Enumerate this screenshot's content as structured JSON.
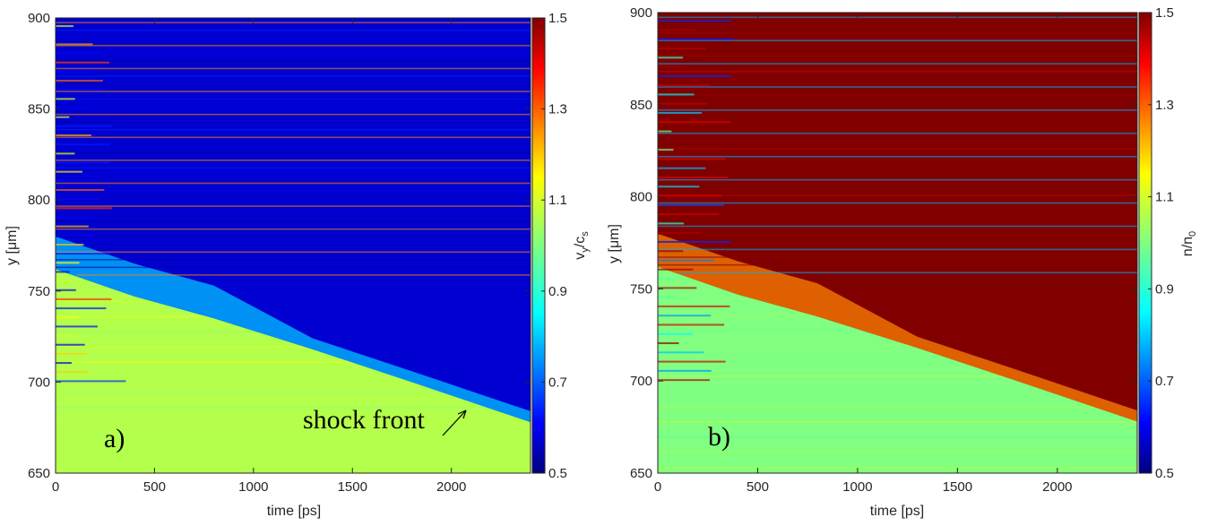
{
  "chart_data": [
    {
      "type": "heatmap",
      "panel_label": "a)",
      "xlabel": "time [ps]",
      "ylabel_main": "y [",
      "ylabel_greek": "μ",
      "ylabel_rest": "m]",
      "xlim": [
        0,
        2400
      ],
      "ylim": [
        650,
        900
      ],
      "x_ticks": [
        0,
        500,
        1000,
        1500,
        2000
      ],
      "y_ticks": [
        650,
        700,
        750,
        800,
        850,
        900
      ],
      "colorbar": {
        "label_main": "v",
        "label_sub1": "y",
        "label_mid": "/c",
        "label_sub2": "s",
        "range": [
          0.5,
          1.5
        ],
        "ticks": [
          "0.5",
          "0.7",
          "0.9",
          "1.1",
          "1.3",
          "1.5"
        ]
      },
      "annotation": "shock front",
      "upstream_value": 1.05,
      "downstream_value": 0.58,
      "shock_front": [
        [
          0,
          762
        ],
        [
          400,
          747
        ],
        [
          800,
          735
        ],
        [
          1300,
          718
        ],
        [
          1800,
          700
        ],
        [
          2400,
          678
        ]
      ],
      "colormap": "jet"
    },
    {
      "type": "heatmap",
      "panel_label": "b)",
      "xlabel": "time [ps]",
      "ylabel_main": "y [",
      "ylabel_greek": "μ",
      "ylabel_rest": "m]",
      "xlim": [
        0,
        2400
      ],
      "ylim": [
        650,
        900
      ],
      "x_ticks": [
        0,
        500,
        1000,
        1500,
        2000
      ],
      "y_ticks": [
        650,
        700,
        750,
        800,
        850,
        900
      ],
      "colorbar": {
        "label_main": "n/n",
        "label_sub1": "0",
        "label_mid": "",
        "label_sub2": "",
        "range": [
          0.5,
          1.5
        ],
        "ticks": [
          "0.5",
          "0.7",
          "0.9",
          "1.1",
          "1.3",
          "1.5"
        ]
      },
      "annotation": "",
      "upstream_value": 1.0,
      "downstream_value": 1.5,
      "shock_front": [
        [
          0,
          762
        ],
        [
          400,
          747
        ],
        [
          800,
          735
        ],
        [
          1300,
          718
        ],
        [
          1800,
          700
        ],
        [
          2400,
          678
        ]
      ],
      "colormap": "jet"
    }
  ]
}
